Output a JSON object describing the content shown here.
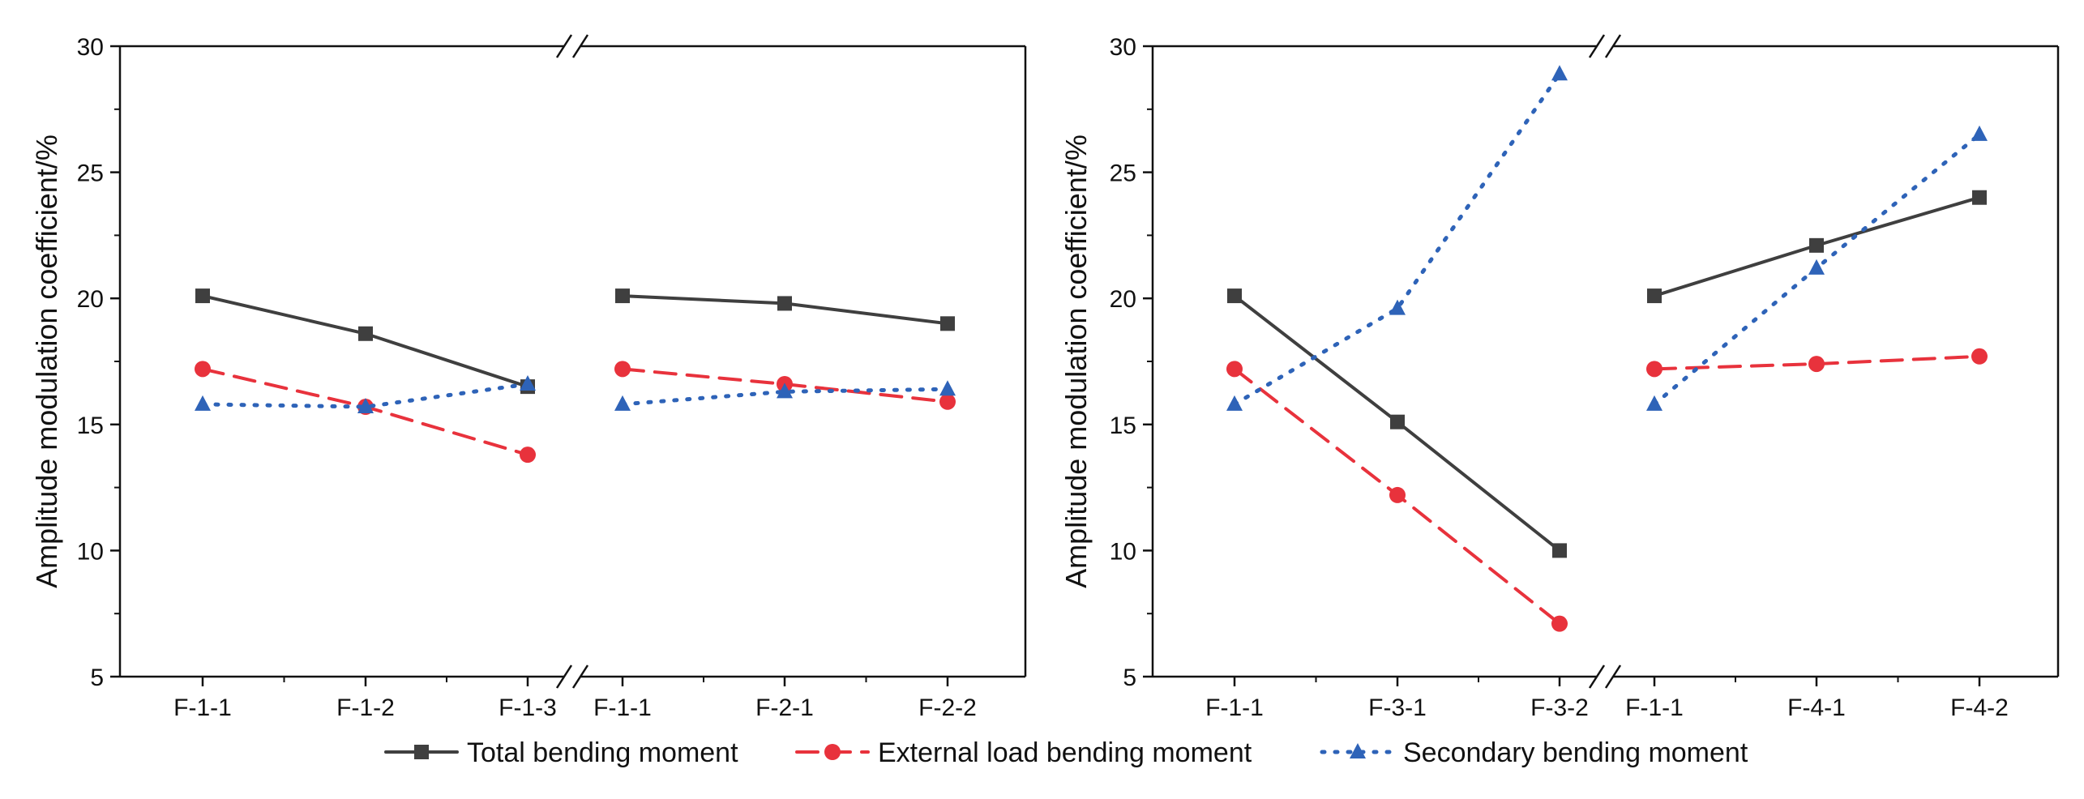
{
  "chart_data": [
    {
      "type": "line",
      "title": "",
      "xlabel": "",
      "ylabel": "Amplitude modulation coefficient/%",
      "ylim": [
        5,
        30
      ],
      "yticks": [
        5,
        10,
        15,
        20,
        25,
        30
      ],
      "grid": false,
      "broken_x_axis": true,
      "segments": [
        {
          "categories": [
            "F-1-1",
            "F-1-2",
            "F-1-3"
          ],
          "series": [
            {
              "name": "Total bending moment",
              "values": [
                20.1,
                18.6,
                16.5
              ]
            },
            {
              "name": "External load bending moment",
              "values": [
                17.2,
                15.7,
                13.8
              ]
            },
            {
              "name": "Secondary bending moment",
              "values": [
                15.8,
                15.7,
                16.6
              ]
            }
          ]
        },
        {
          "categories": [
            "F-1-1",
            "F-2-1",
            "F-2-2"
          ],
          "series": [
            {
              "name": "Total bending moment",
              "values": [
                20.1,
                19.8,
                19.0
              ]
            },
            {
              "name": "External load bending moment",
              "values": [
                17.2,
                16.6,
                15.9
              ]
            },
            {
              "name": "Secondary bending moment",
              "values": [
                15.8,
                16.3,
                16.4
              ]
            }
          ]
        }
      ]
    },
    {
      "type": "line",
      "title": "",
      "xlabel": "",
      "ylabel": "Amplitude modulation coefficient/%",
      "ylim": [
        5,
        30
      ],
      "yticks": [
        5,
        10,
        15,
        20,
        25,
        30
      ],
      "grid": false,
      "broken_x_axis": true,
      "segments": [
        {
          "categories": [
            "F-1-1",
            "F-3-1",
            "F-3-2"
          ],
          "series": [
            {
              "name": "Total bending moment",
              "values": [
                20.1,
                15.1,
                10.0
              ]
            },
            {
              "name": "External load bending moment",
              "values": [
                17.2,
                12.2,
                7.1
              ]
            },
            {
              "name": "Secondary bending moment",
              "values": [
                15.8,
                19.6,
                28.9
              ]
            }
          ]
        },
        {
          "categories": [
            "F-1-1",
            "F-4-1",
            "F-4-2"
          ],
          "series": [
            {
              "name": "Total bending moment",
              "values": [
                20.1,
                22.1,
                24.0
              ]
            },
            {
              "name": "External load bending moment",
              "values": [
                17.2,
                17.4,
                17.7
              ]
            },
            {
              "name": "Secondary bending moment",
              "values": [
                15.8,
                21.2,
                26.5
              ]
            }
          ]
        }
      ]
    }
  ],
  "legend": {
    "position": "bottom-center",
    "items": [
      {
        "label": "Total bending moment",
        "color": "#3f3f3f",
        "marker": "square",
        "dash": "solid"
      },
      {
        "label": "External load bending moment",
        "color": "#e8323c",
        "marker": "circle",
        "dash": "dashed"
      },
      {
        "label": "Secondary bending moment",
        "color": "#2e63b8",
        "marker": "triangle",
        "dash": "dotted"
      }
    ]
  }
}
